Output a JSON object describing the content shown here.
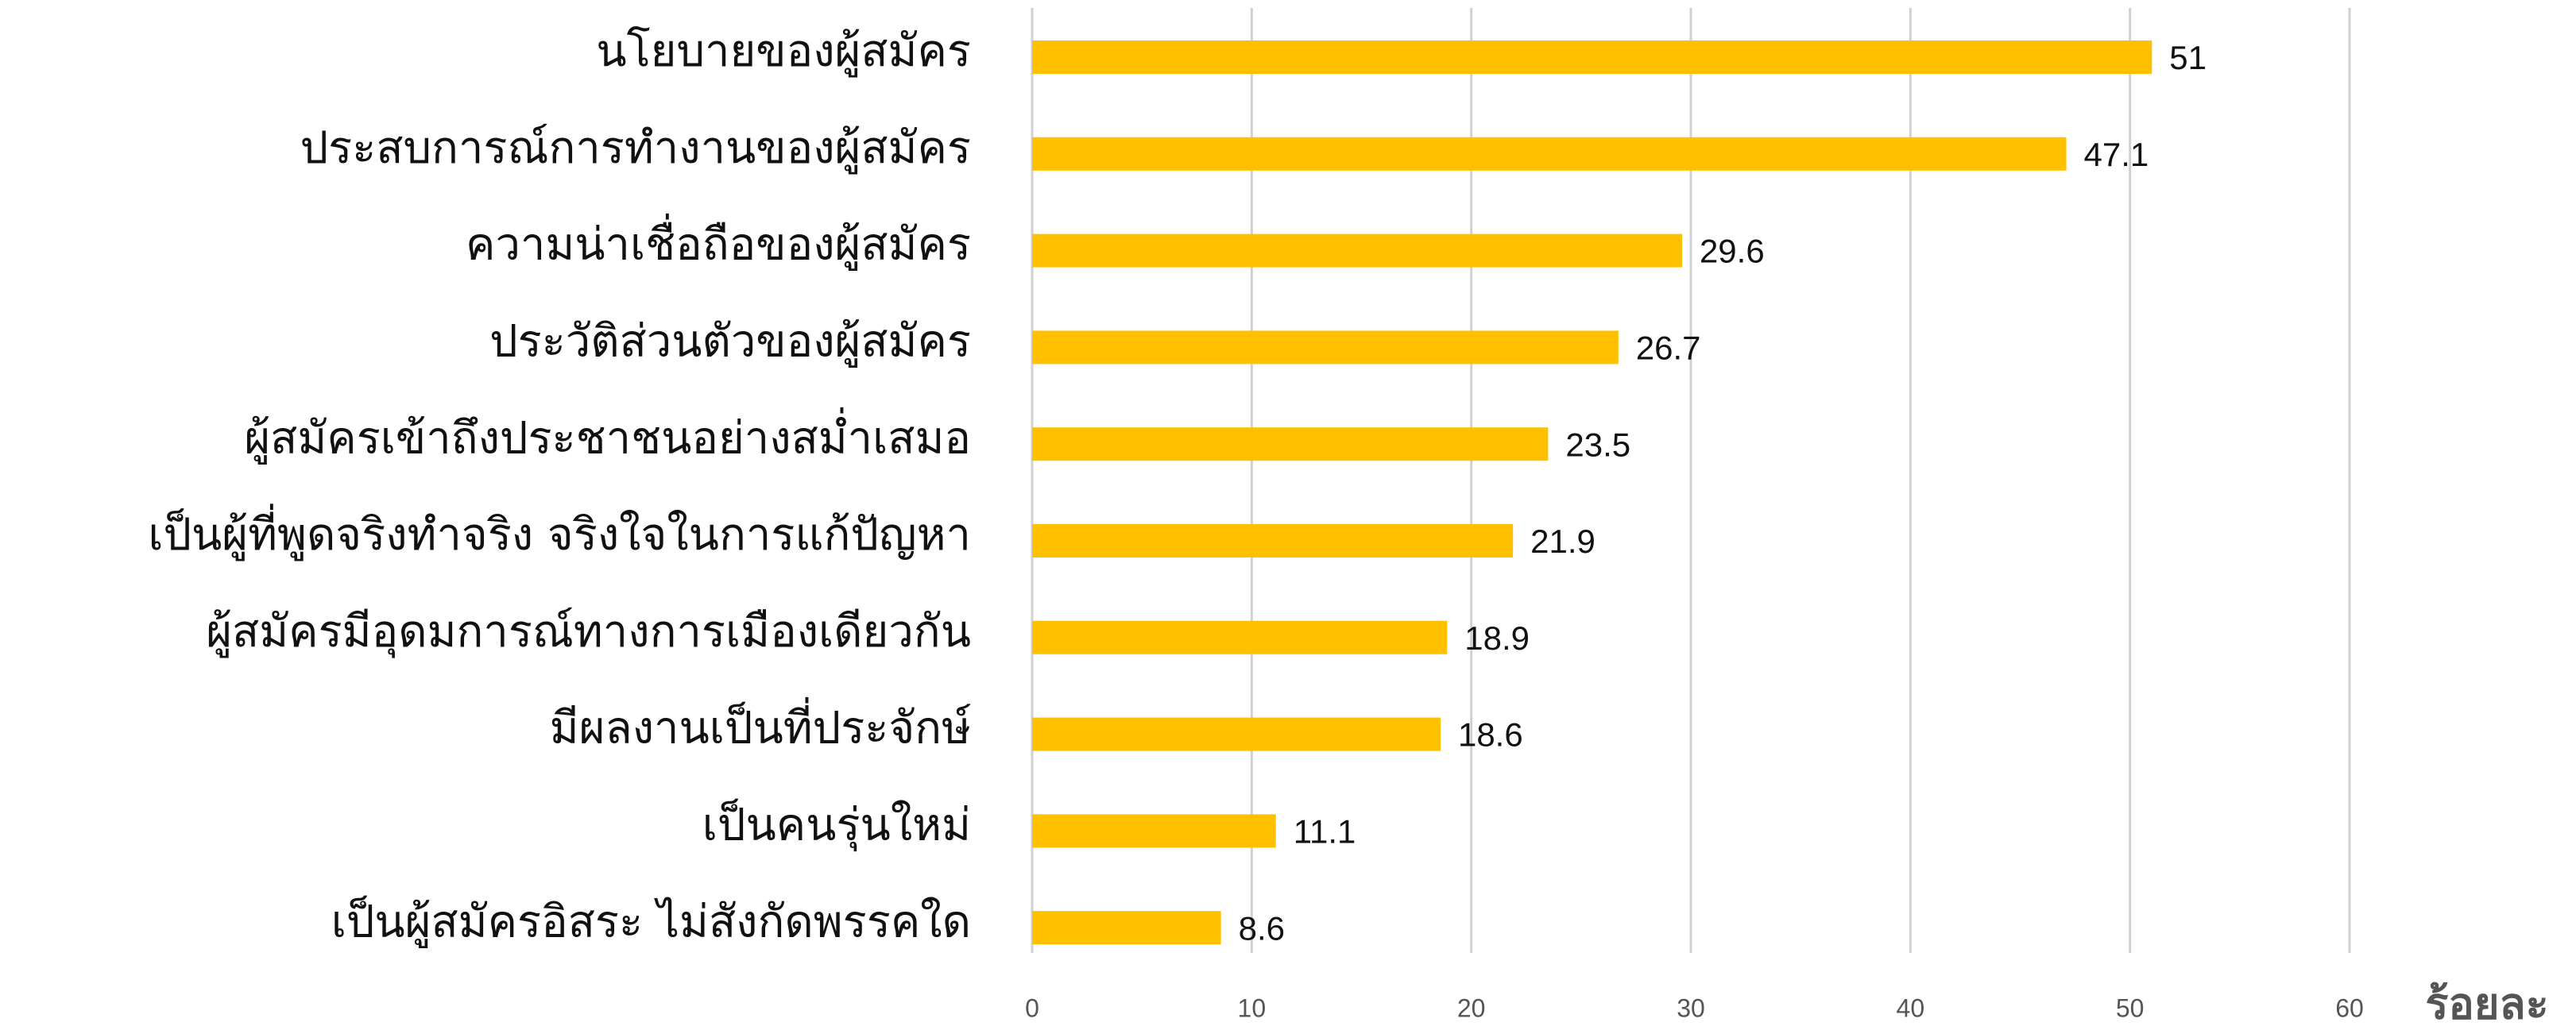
{
  "chart_data": {
    "type": "bar",
    "orientation": "horizontal",
    "categories": [
      "นโยบายของผู้สมัคร",
      "ประสบการณ์การทำงานของผู้สมัคร",
      "ความน่าเชื่อถือของผู้สมัคร",
      "ประวัติส่วนตัวของผู้สมัคร",
      "ผู้สมัครเข้าถึงประชาชนอย่างสม่ำเสมอ",
      "เป็นผู้ที่พูดจริงทำจริง จริงใจในการแก้ปัญหา",
      "ผู้สมัครมีอุดมการณ์ทางการเมืองเดียวกัน",
      "มีผลงานเป็นที่ประจักษ์",
      "เป็นคนรุ่นใหม่",
      "เป็นผู้สมัครอิสระ ไม่สังกัดพรรคใด"
    ],
    "values": [
      51,
      47.1,
      29.6,
      26.7,
      23.5,
      21.9,
      18.9,
      18.6,
      11.1,
      8.6
    ],
    "color": "#ffc000",
    "xlabel": "ร้อยละ",
    "xlim": [
      0,
      60
    ],
    "xticks": [
      0,
      10,
      20,
      30,
      40,
      50,
      60
    ],
    "grid": true
  }
}
